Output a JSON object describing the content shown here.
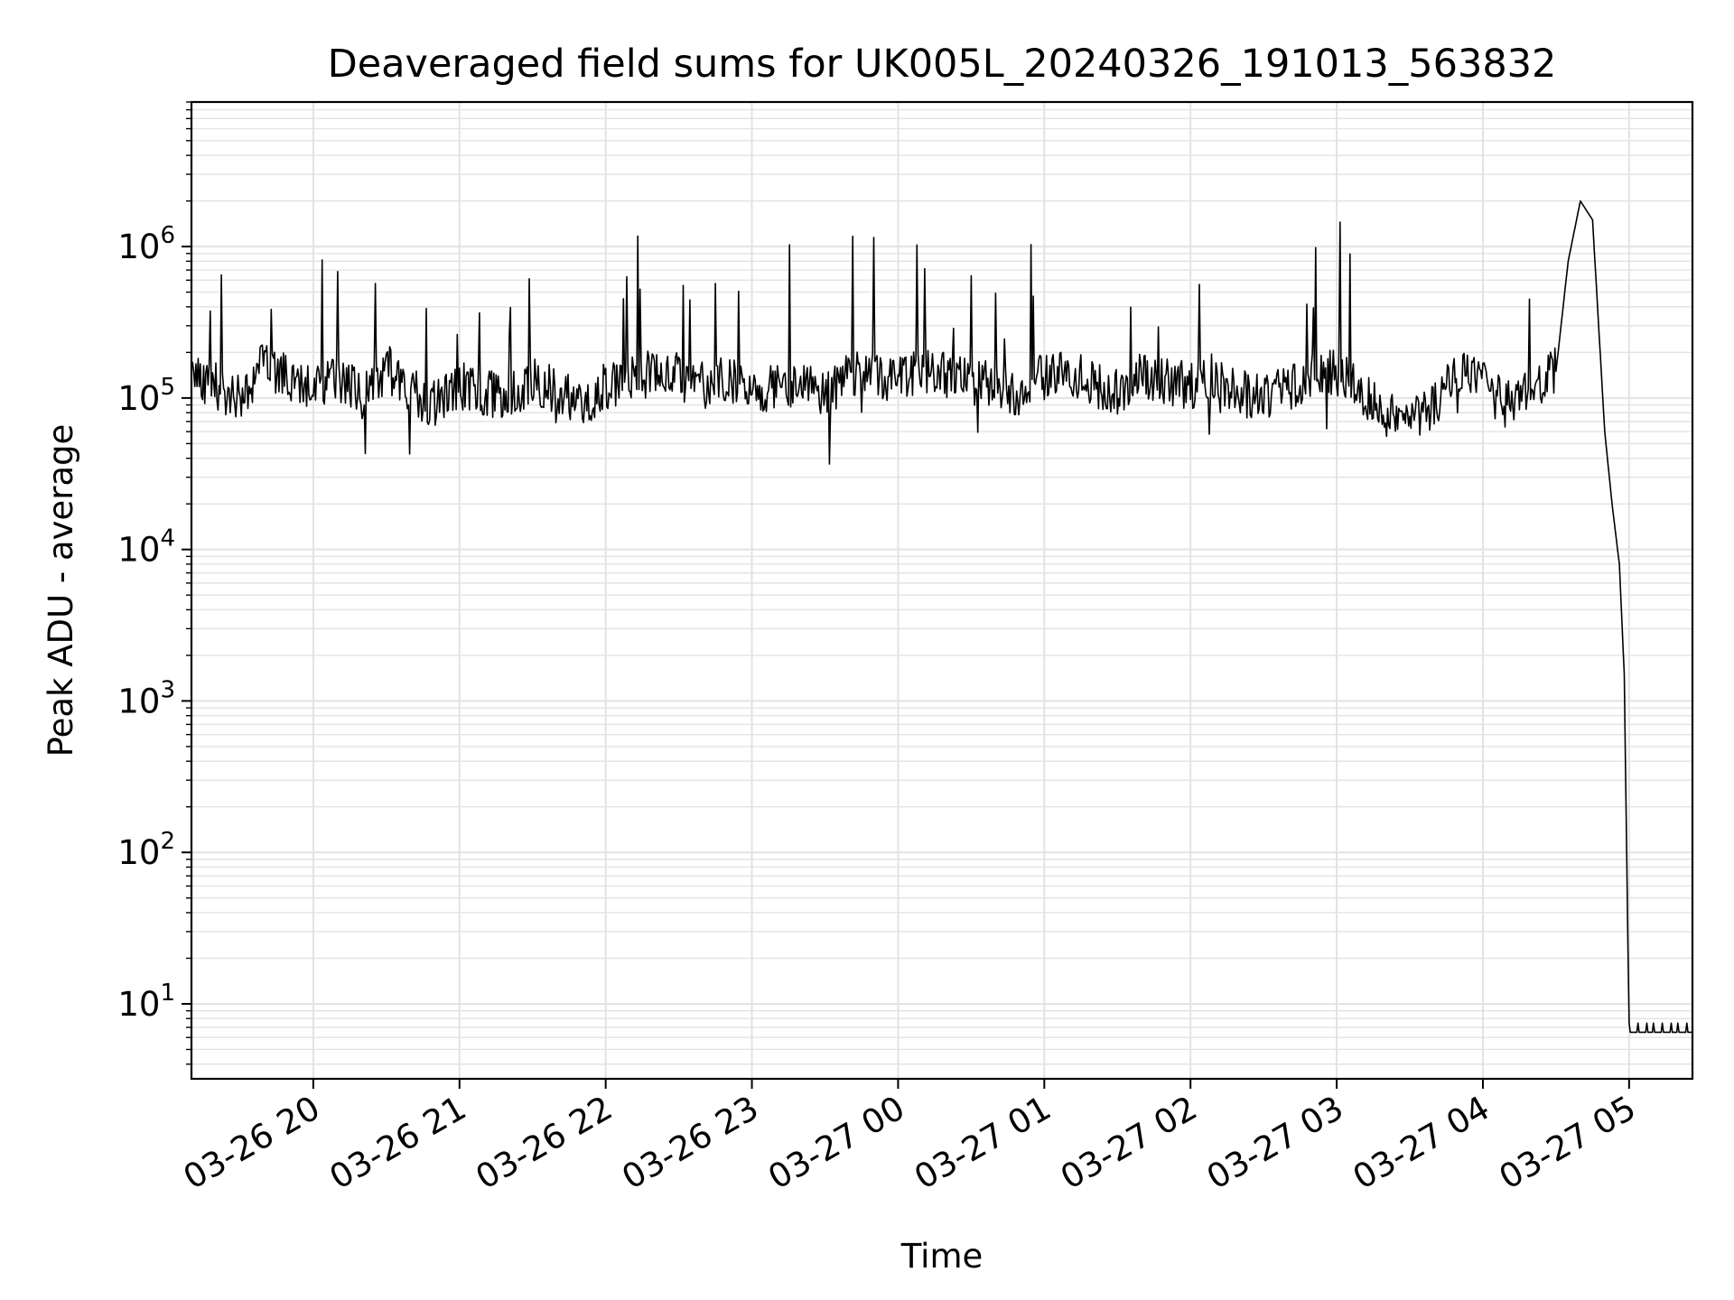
{
  "chart_data": {
    "type": "line",
    "title": "Deaveraged field sums for UK005L_20240326_191013_563832",
    "xlabel": "Time",
    "ylabel": "Peak ADU - average",
    "yscale": "log",
    "ylim": [
      3.2,
      9000000
    ],
    "xlim": [
      "2024-03-26 19:10",
      "2024-03-27 05:26"
    ],
    "x_ticks": [
      {
        "label": "03-26 20",
        "t": "2024-03-26 20:00"
      },
      {
        "label": "03-26 21",
        "t": "2024-03-26 21:00"
      },
      {
        "label": "03-26 22",
        "t": "2024-03-26 22:00"
      },
      {
        "label": "03-26 23",
        "t": "2024-03-26 23:00"
      },
      {
        "label": "03-27 00",
        "t": "2024-03-27 00:00"
      },
      {
        "label": "03-27 01",
        "t": "2024-03-27 01:00"
      },
      {
        "label": "03-27 02",
        "t": "2024-03-27 02:00"
      },
      {
        "label": "03-27 03",
        "t": "2024-03-27 03:00"
      },
      {
        "label": "03-27 04",
        "t": "2024-03-27 04:00"
      },
      {
        "label": "03-27 05",
        "t": "2024-03-27 05:00"
      }
    ],
    "y_ticks": [
      {
        "base": "10",
        "exp": "1",
        "value": 10
      },
      {
        "base": "10",
        "exp": "2",
        "value": 100
      },
      {
        "base": "10",
        "exp": "3",
        "value": 1000
      },
      {
        "base": "10",
        "exp": "4",
        "value": 10000
      },
      {
        "base": "10",
        "exp": "5",
        "value": 100000
      },
      {
        "base": "10",
        "exp": "6",
        "value": 1000000
      }
    ],
    "grid": true,
    "line_color": "#000000",
    "grid_color": "#e3e3e3",
    "series": [
      {
        "x": [
          "2024-03-26 19:10",
          "2024-03-26 19:20",
          "2024-03-26 19:30",
          "2024-03-26 19:40",
          "2024-03-26 19:50",
          "2024-03-26 20:00",
          "2024-03-26 20:10",
          "2024-03-26 20:20",
          "2024-03-26 20:30",
          "2024-03-26 20:40",
          "2024-03-26 20:50",
          "2024-03-26 21:00",
          "2024-03-26 21:10",
          "2024-03-26 21:20",
          "2024-03-26 21:30",
          "2024-03-26 21:40",
          "2024-03-26 21:50",
          "2024-03-26 22:00",
          "2024-03-26 22:10",
          "2024-03-26 22:20",
          "2024-03-26 22:30",
          "2024-03-26 22:40",
          "2024-03-26 22:50",
          "2024-03-26 23:00",
          "2024-03-26 23:10",
          "2024-03-26 23:20",
          "2024-03-26 23:30",
          "2024-03-26 23:40",
          "2024-03-26 23:50",
          "2024-03-27 00:00",
          "2024-03-27 00:10",
          "2024-03-27 00:20",
          "2024-03-27 00:30",
          "2024-03-27 00:40",
          "2024-03-27 00:50",
          "2024-03-27 01:00",
          "2024-03-27 01:10",
          "2024-03-27 01:20",
          "2024-03-27 01:30",
          "2024-03-27 01:40",
          "2024-03-27 01:50",
          "2024-03-27 02:00",
          "2024-03-27 02:10",
          "2024-03-27 02:20",
          "2024-03-27 02:30",
          "2024-03-27 02:40",
          "2024-03-27 02:50",
          "2024-03-27 03:00",
          "2024-03-27 03:10",
          "2024-03-27 03:20",
          "2024-03-27 03:30",
          "2024-03-27 03:40",
          "2024-03-27 03:50",
          "2024-03-27 04:00",
          "2024-03-27 04:10",
          "2024-03-27 04:20",
          "2024-03-27 04:30",
          "2024-03-27 04:35",
          "2024-03-27 04:40",
          "2024-03-27 04:45",
          "2024-03-27 04:50",
          "2024-03-27 04:53",
          "2024-03-27 04:56",
          "2024-03-27 04:58",
          "2024-03-27 05:00",
          "2024-03-27 05:10",
          "2024-03-27 05:20",
          "2024-03-27 05:26"
        ],
        "y": [
          150000,
          120000,
          100000,
          180000,
          130000,
          110000,
          140000,
          100000,
          160000,
          110000,
          90000,
          120000,
          110000,
          100000,
          130000,
          110000,
          90000,
          120000,
          130000,
          150000,
          140000,
          120000,
          130000,
          110000,
          120000,
          130000,
          100000,
          150000,
          140000,
          130000,
          150000,
          140000,
          130000,
          120000,
          110000,
          140000,
          150000,
          120000,
          110000,
          140000,
          130000,
          120000,
          140000,
          110000,
          100000,
          120000,
          140000,
          150000,
          110000,
          80000,
          70000,
          90000,
          150000,
          120000,
          90000,
          110000,
          150000,
          800000,
          2000000,
          1500000,
          60000,
          20000,
          8000,
          1500,
          6.5,
          6.5,
          6.5,
          6.5
        ]
      }
    ]
  }
}
